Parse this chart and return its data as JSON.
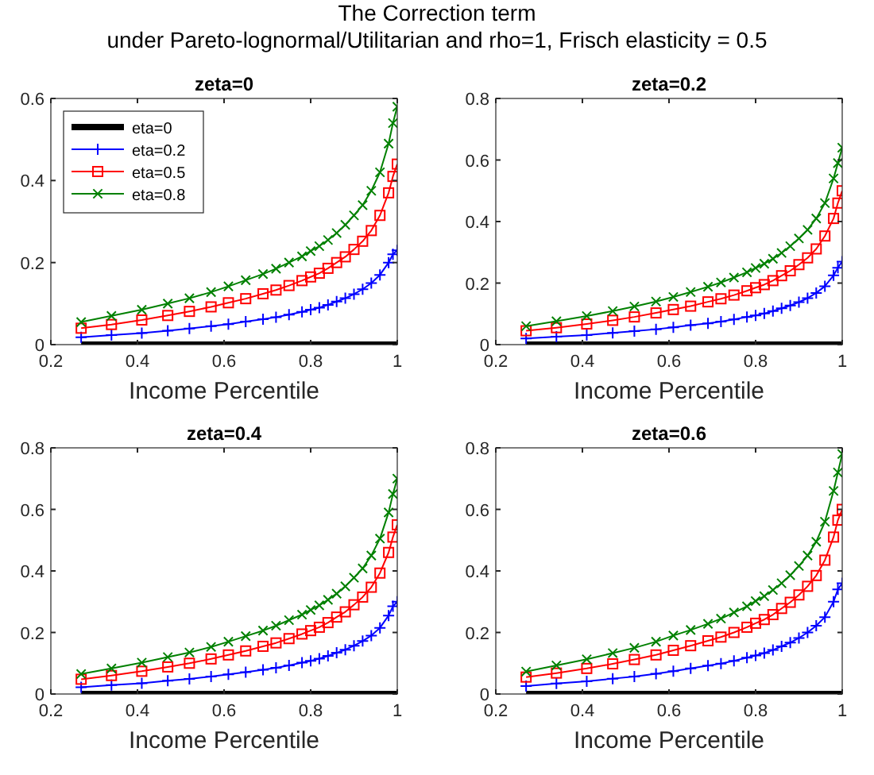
{
  "chart_data": [
    {
      "type": "line",
      "title": "zeta=0",
      "xlabel": "Income Percentile",
      "annotations": [
        "The Correction term",
        "under Pareto-lognormal/Utilitarian and rho=1, Frisch elasticity = 0.5"
      ],
      "xlim": [
        0.2,
        1
      ],
      "xticks": [
        0.2,
        0.4,
        0.6,
        0.8,
        1
      ],
      "ylim": [
        0,
        0.6
      ],
      "yticks": [
        0,
        0.2,
        0.4,
        0.6
      ],
      "grid": false,
      "legend": "top left",
      "x": [
        0.27,
        0.34,
        0.41,
        0.47,
        0.52,
        0.57,
        0.61,
        0.65,
        0.69,
        0.72,
        0.75,
        0.78,
        0.8,
        0.82,
        0.84,
        0.86,
        0.88,
        0.9,
        0.92,
        0.94,
        0.96,
        0.98,
        0.99,
        1.0
      ],
      "series": [
        {
          "name": "eta=0",
          "color": "#000000",
          "marker": "none",
          "values": [
            0,
            0,
            0,
            0,
            0,
            0,
            0,
            0,
            0,
            0,
            0,
            0,
            0,
            0,
            0,
            0,
            0,
            0,
            0,
            0,
            0,
            0,
            0,
            0
          ]
        },
        {
          "name": "eta=0.2",
          "color": "#0000ff",
          "marker": "plus",
          "values": [
            0.018,
            0.023,
            0.028,
            0.034,
            0.039,
            0.045,
            0.05,
            0.056,
            0.062,
            0.067,
            0.073,
            0.08,
            0.085,
            0.09,
            0.097,
            0.105,
            0.113,
            0.123,
            0.135,
            0.15,
            0.17,
            0.2,
            0.22,
            0.23
          ]
        },
        {
          "name": "eta=0.5",
          "color": "#ff0000",
          "marker": "square",
          "values": [
            0.04,
            0.049,
            0.06,
            0.071,
            0.081,
            0.092,
            0.102,
            0.112,
            0.124,
            0.133,
            0.144,
            0.156,
            0.165,
            0.174,
            0.186,
            0.2,
            0.214,
            0.232,
            0.252,
            0.278,
            0.315,
            0.37,
            0.41,
            0.44
          ]
        },
        {
          "name": "eta=0.8",
          "color": "#008000",
          "marker": "cross",
          "values": [
            0.055,
            0.07,
            0.085,
            0.1,
            0.113,
            0.128,
            0.142,
            0.157,
            0.172,
            0.185,
            0.2,
            0.215,
            0.228,
            0.24,
            0.255,
            0.272,
            0.292,
            0.315,
            0.34,
            0.375,
            0.42,
            0.49,
            0.54,
            0.58
          ]
        }
      ]
    },
    {
      "type": "line",
      "title": "zeta=0.2",
      "xlabel": "Income Percentile",
      "xlim": [
        0.2,
        1
      ],
      "xticks": [
        0.2,
        0.4,
        0.6,
        0.8,
        1
      ],
      "ylim": [
        0,
        0.8
      ],
      "yticks": [
        0,
        0.2,
        0.4,
        0.6,
        0.8
      ],
      "grid": false,
      "x": [
        0.27,
        0.34,
        0.41,
        0.47,
        0.52,
        0.57,
        0.61,
        0.65,
        0.69,
        0.72,
        0.75,
        0.78,
        0.8,
        0.82,
        0.84,
        0.86,
        0.88,
        0.9,
        0.92,
        0.94,
        0.96,
        0.98,
        0.99,
        1.0
      ],
      "series": [
        {
          "color": "#000000",
          "marker": "none",
          "values": [
            0,
            0,
            0,
            0,
            0,
            0,
            0,
            0,
            0,
            0,
            0,
            0,
            0,
            0,
            0,
            0,
            0,
            0,
            0,
            0,
            0,
            0,
            0,
            0
          ]
        },
        {
          "color": "#0000ff",
          "marker": "plus",
          "values": [
            0.02,
            0.026,
            0.031,
            0.038,
            0.044,
            0.05,
            0.056,
            0.063,
            0.069,
            0.075,
            0.082,
            0.09,
            0.095,
            0.101,
            0.109,
            0.118,
            0.127,
            0.138,
            0.151,
            0.168,
            0.19,
            0.225,
            0.25,
            0.27
          ]
        },
        {
          "color": "#ff0000",
          "marker": "square",
          "values": [
            0.045,
            0.055,
            0.067,
            0.079,
            0.09,
            0.103,
            0.114,
            0.125,
            0.139,
            0.149,
            0.161,
            0.175,
            0.185,
            0.195,
            0.208,
            0.224,
            0.24,
            0.26,
            0.282,
            0.311,
            0.353,
            0.41,
            0.46,
            0.5
          ]
        },
        {
          "color": "#008000",
          "marker": "cross",
          "values": [
            0.06,
            0.076,
            0.093,
            0.109,
            0.124,
            0.14,
            0.155,
            0.171,
            0.188,
            0.202,
            0.218,
            0.235,
            0.249,
            0.263,
            0.279,
            0.298,
            0.32,
            0.345,
            0.373,
            0.41,
            0.46,
            0.54,
            0.59,
            0.64
          ]
        }
      ]
    },
    {
      "type": "line",
      "title": "zeta=0.4",
      "xlabel": "Income Percentile",
      "xlim": [
        0.2,
        1
      ],
      "xticks": [
        0.2,
        0.4,
        0.6,
        0.8,
        1
      ],
      "ylim": [
        0,
        0.8
      ],
      "yticks": [
        0,
        0.2,
        0.4,
        0.6,
        0.8
      ],
      "grid": false,
      "x": [
        0.27,
        0.34,
        0.41,
        0.47,
        0.52,
        0.57,
        0.61,
        0.65,
        0.69,
        0.72,
        0.75,
        0.78,
        0.8,
        0.82,
        0.84,
        0.86,
        0.88,
        0.9,
        0.92,
        0.94,
        0.96,
        0.98,
        0.99,
        1.0
      ],
      "series": [
        {
          "color": "#000000",
          "marker": "none",
          "values": [
            0,
            0,
            0,
            0,
            0,
            0,
            0,
            0,
            0,
            0,
            0,
            0,
            0,
            0,
            0,
            0,
            0,
            0,
            0,
            0,
            0,
            0,
            0,
            0
          ]
        },
        {
          "color": "#0000ff",
          "marker": "plus",
          "values": [
            0.022,
            0.029,
            0.035,
            0.043,
            0.049,
            0.057,
            0.064,
            0.071,
            0.079,
            0.085,
            0.093,
            0.102,
            0.108,
            0.115,
            0.124,
            0.134,
            0.144,
            0.157,
            0.172,
            0.19,
            0.215,
            0.255,
            0.285,
            0.3
          ]
        },
        {
          "color": "#ff0000",
          "marker": "square",
          "values": [
            0.048,
            0.06,
            0.074,
            0.088,
            0.1,
            0.114,
            0.127,
            0.14,
            0.155,
            0.166,
            0.18,
            0.195,
            0.206,
            0.217,
            0.232,
            0.25,
            0.267,
            0.29,
            0.315,
            0.347,
            0.393,
            0.46,
            0.51,
            0.55
          ]
        },
        {
          "color": "#008000",
          "marker": "cross",
          "values": [
            0.065,
            0.083,
            0.102,
            0.12,
            0.135,
            0.153,
            0.17,
            0.188,
            0.206,
            0.222,
            0.24,
            0.258,
            0.273,
            0.288,
            0.306,
            0.326,
            0.35,
            0.378,
            0.408,
            0.45,
            0.505,
            0.59,
            0.65,
            0.7
          ]
        }
      ]
    },
    {
      "type": "line",
      "title": "zeta=0.6",
      "xlabel": "Income Percentile",
      "xlim": [
        0.2,
        1
      ],
      "xticks": [
        0.2,
        0.4,
        0.6,
        0.8,
        1
      ],
      "ylim": [
        0,
        0.8
      ],
      "yticks": [
        0,
        0.2,
        0.4,
        0.6,
        0.8
      ],
      "grid": false,
      "x": [
        0.27,
        0.34,
        0.41,
        0.47,
        0.52,
        0.57,
        0.61,
        0.65,
        0.69,
        0.72,
        0.75,
        0.78,
        0.8,
        0.82,
        0.84,
        0.86,
        0.88,
        0.9,
        0.92,
        0.94,
        0.96,
        0.98,
        0.99,
        1.0
      ],
      "series": [
        {
          "color": "#000000",
          "marker": "none",
          "values": [
            0,
            0,
            0,
            0,
            0,
            0,
            0,
            0,
            0,
            0,
            0,
            0,
            0,
            0,
            0,
            0,
            0,
            0,
            0,
            0,
            0,
            0,
            0,
            0
          ]
        },
        {
          "color": "#0000ff",
          "marker": "plus",
          "values": [
            0.026,
            0.034,
            0.041,
            0.05,
            0.057,
            0.066,
            0.074,
            0.083,
            0.092,
            0.099,
            0.108,
            0.118,
            0.125,
            0.133,
            0.143,
            0.155,
            0.167,
            0.182,
            0.2,
            0.222,
            0.25,
            0.3,
            0.34,
            0.36
          ]
        },
        {
          "color": "#ff0000",
          "marker": "square",
          "values": [
            0.055,
            0.068,
            0.083,
            0.098,
            0.112,
            0.127,
            0.142,
            0.157,
            0.173,
            0.185,
            0.2,
            0.217,
            0.23,
            0.242,
            0.258,
            0.278,
            0.298,
            0.322,
            0.35,
            0.385,
            0.435,
            0.51,
            0.565,
            0.6
          ]
        },
        {
          "color": "#008000",
          "marker": "cross",
          "values": [
            0.073,
            0.093,
            0.113,
            0.133,
            0.15,
            0.17,
            0.19,
            0.208,
            0.228,
            0.245,
            0.265,
            0.285,
            0.302,
            0.318,
            0.338,
            0.36,
            0.386,
            0.416,
            0.45,
            0.495,
            0.56,
            0.66,
            0.72,
            0.78
          ]
        }
      ]
    }
  ]
}
